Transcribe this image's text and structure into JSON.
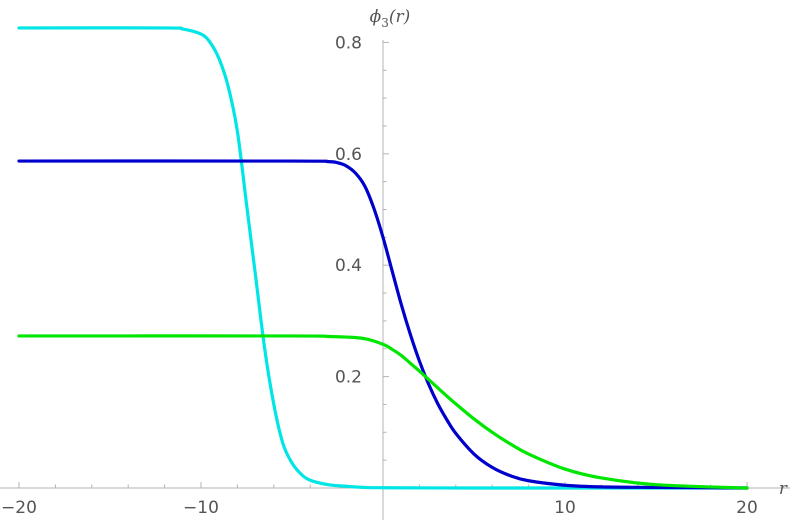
{
  "chart_data": {
    "type": "line",
    "title": "",
    "xlabel": "r",
    "ylabel_main": "ϕ",
    "ylabel_sub": "3",
    "ylabel_tail": "(r)",
    "xlim": [
      -20,
      20
    ],
    "ylim": [
      0,
      0.86
    ],
    "grid": false,
    "legend": "none",
    "x_ticks": [
      {
        "value": -20,
        "label": "−20"
      },
      {
        "value": -10,
        "label": "−10"
      },
      {
        "value": 10,
        "label": "10"
      },
      {
        "value": 20,
        "label": "20"
      }
    ],
    "y_ticks": [
      {
        "value": 0.2,
        "label": "0.2"
      },
      {
        "value": 0.4,
        "label": "0.4"
      },
      {
        "value": 0.6,
        "label": "0.6"
      },
      {
        "value": 0.8,
        "label": "0.8"
      }
    ],
    "series": [
      {
        "color": "#00e5e5",
        "x": [
          -20,
          -12,
          -11,
          -10,
          -9.5,
          -9,
          -8.5,
          -8,
          -7.5,
          -7,
          -6.5,
          -6,
          -5.5,
          -5,
          -4.5,
          -4,
          -3,
          -2,
          -1,
          0,
          5,
          10,
          20
        ],
        "y": [
          0.826,
          0.826,
          0.824,
          0.815,
          0.8,
          0.77,
          0.72,
          0.64,
          0.51,
          0.38,
          0.25,
          0.15,
          0.08,
          0.045,
          0.025,
          0.014,
          0.006,
          0.003,
          0.001,
          0.0005,
          0.0,
          0.0,
          0.0
        ]
      },
      {
        "color": "#0000cc",
        "x": [
          -20,
          -5,
          -3,
          -2.5,
          -2,
          -1.5,
          -1,
          -0.5,
          0,
          0.5,
          1,
          1.5,
          2,
          2.5,
          3,
          3.5,
          4,
          5,
          6,
          7,
          8,
          10,
          12,
          15,
          20
        ],
        "y": [
          0.587,
          0.587,
          0.586,
          0.584,
          0.578,
          0.565,
          0.542,
          0.502,
          0.45,
          0.39,
          0.33,
          0.276,
          0.228,
          0.187,
          0.152,
          0.123,
          0.098,
          0.061,
          0.037,
          0.022,
          0.013,
          0.005,
          0.002,
          0.001,
          0.0
        ]
      },
      {
        "color": "#00e600",
        "x": [
          -20,
          -5,
          -3,
          -2,
          -1,
          0,
          0.5,
          1,
          1.5,
          2,
          2.5,
          3,
          4,
          5,
          6,
          7,
          8,
          10,
          12,
          15,
          20
        ],
        "y": [
          0.273,
          0.273,
          0.272,
          0.271,
          0.268,
          0.258,
          0.249,
          0.238,
          0.224,
          0.21,
          0.195,
          0.18,
          0.151,
          0.124,
          0.1,
          0.079,
          0.061,
          0.034,
          0.018,
          0.006,
          0.0
        ]
      }
    ]
  }
}
